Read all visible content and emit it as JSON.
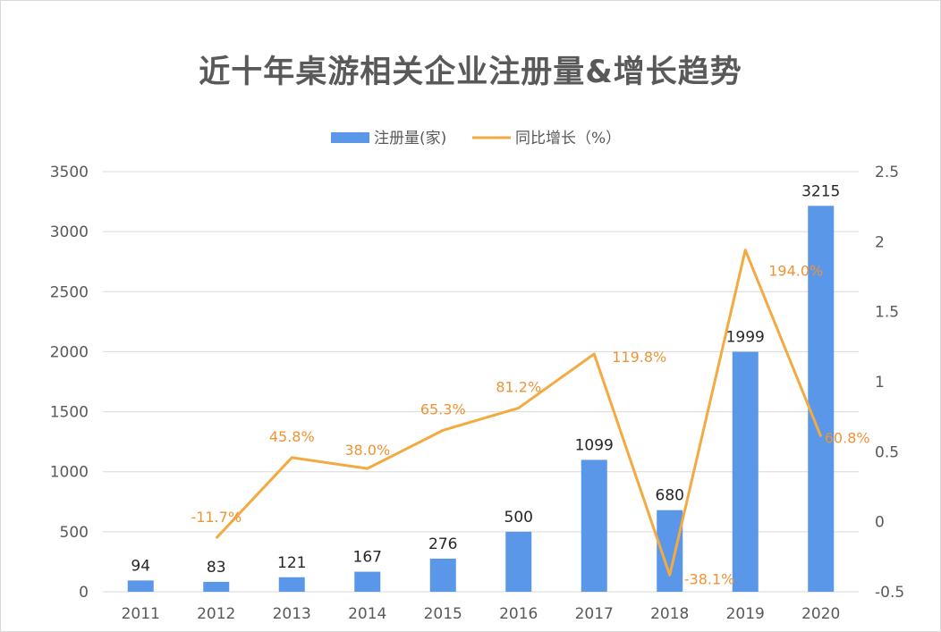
{
  "colors": {
    "bar": "#5b97e8",
    "line": "#f2aa41",
    "line_label": "#ed9435",
    "grid": "#d9d9d9",
    "axis_text": "#595959"
  },
  "chart_data": {
    "type": "bar",
    "title": "近十年桌游相关企业注册量&增长趋势",
    "categories": [
      "2011",
      "2012",
      "2013",
      "2014",
      "2015",
      "2016",
      "2017",
      "2018",
      "2019",
      "2020"
    ],
    "series": [
      {
        "name": "注册量(家)",
        "type": "bar",
        "axis": "left",
        "values": [
          94,
          83,
          121,
          167,
          276,
          500,
          1099,
          680,
          1999,
          3215
        ],
        "labels": [
          "94",
          "83",
          "121",
          "167",
          "276",
          "500",
          "1099",
          "680",
          "1999",
          "3215"
        ]
      },
      {
        "name": "同比增长（%）",
        "type": "line",
        "axis": "right",
        "values": [
          null,
          -0.117,
          0.458,
          0.38,
          0.653,
          0.812,
          1.198,
          -0.381,
          1.94,
          0.608
        ],
        "labels": [
          null,
          "-11.7%",
          "45.8%",
          "38.0%",
          "65.3%",
          "81.2%",
          "119.8%",
          "-38.1%",
          "194.0%",
          "60.8%"
        ]
      }
    ],
    "y_left": {
      "min": 0,
      "max": 3500,
      "ticks": [
        "0",
        "500",
        "1000",
        "1500",
        "2000",
        "2500",
        "3000",
        "3500"
      ]
    },
    "y_right": {
      "min": -0.5,
      "max": 2.5,
      "ticks": [
        "-0.5",
        "0",
        "0.5",
        "1",
        "1.5",
        "2",
        "2.5"
      ]
    },
    "grid": true,
    "legend": "top-center"
  }
}
